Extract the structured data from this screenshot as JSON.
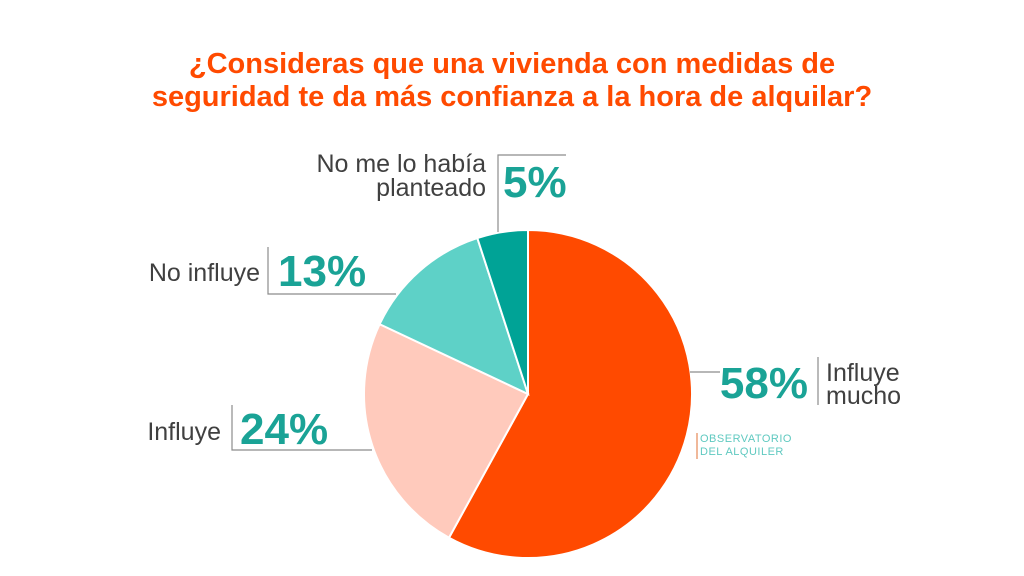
{
  "title": {
    "line1": "¿Consideras que una vivienda con medidas de",
    "line2": "seguridad te da más confianza a la hora de alquilar?"
  },
  "logo": {
    "line1": "OBSERVATORIO",
    "line2": "DEL ALQUILER"
  },
  "colors": {
    "title": "#ff4a00",
    "pct_text": "#1aa396",
    "label_text": "#404040"
  },
  "chart_data": {
    "type": "pie",
    "title": "¿Consideras que una vivienda con medidas de seguridad te da más confianza a la hora de alquilar?",
    "slices": [
      {
        "label": "Influye mucho",
        "label_lines": [
          "Influye",
          "mucho"
        ],
        "value": 58,
        "display": "58%",
        "color": "#ff4a00"
      },
      {
        "label": "Influye",
        "label_lines": [
          "Influye"
        ],
        "value": 24,
        "display": "24%",
        "color": "#ffcabc"
      },
      {
        "label": "No influye",
        "label_lines": [
          "No influye"
        ],
        "value": 13,
        "display": "13%",
        "color": "#5ed1c7"
      },
      {
        "label": "No me lo había planteado",
        "label_lines": [
          "No me lo había",
          "planteado"
        ],
        "value": 5,
        "display": "5%",
        "color": "#00a396"
      }
    ]
  }
}
